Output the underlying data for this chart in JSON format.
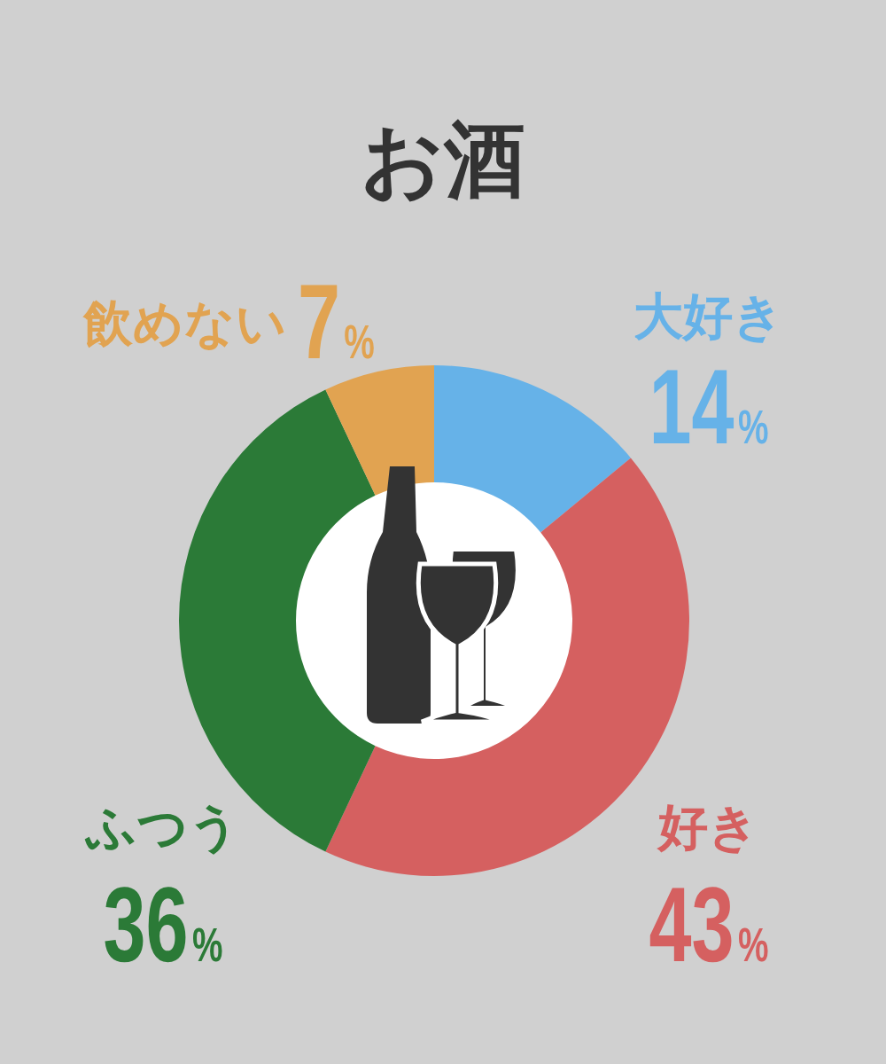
{
  "chart_data": {
    "type": "donut",
    "title": "お酒",
    "categories": [
      "大好き",
      "好き",
      "ふつう",
      "飲めない"
    ],
    "values": [
      14,
      43,
      36,
      7
    ],
    "colors": [
      "#66b2e8",
      "#d56060",
      "#2b7a37",
      "#e1a351"
    ],
    "value_labels": [
      "14%",
      "43%",
      "36%",
      "7%"
    ]
  }
}
